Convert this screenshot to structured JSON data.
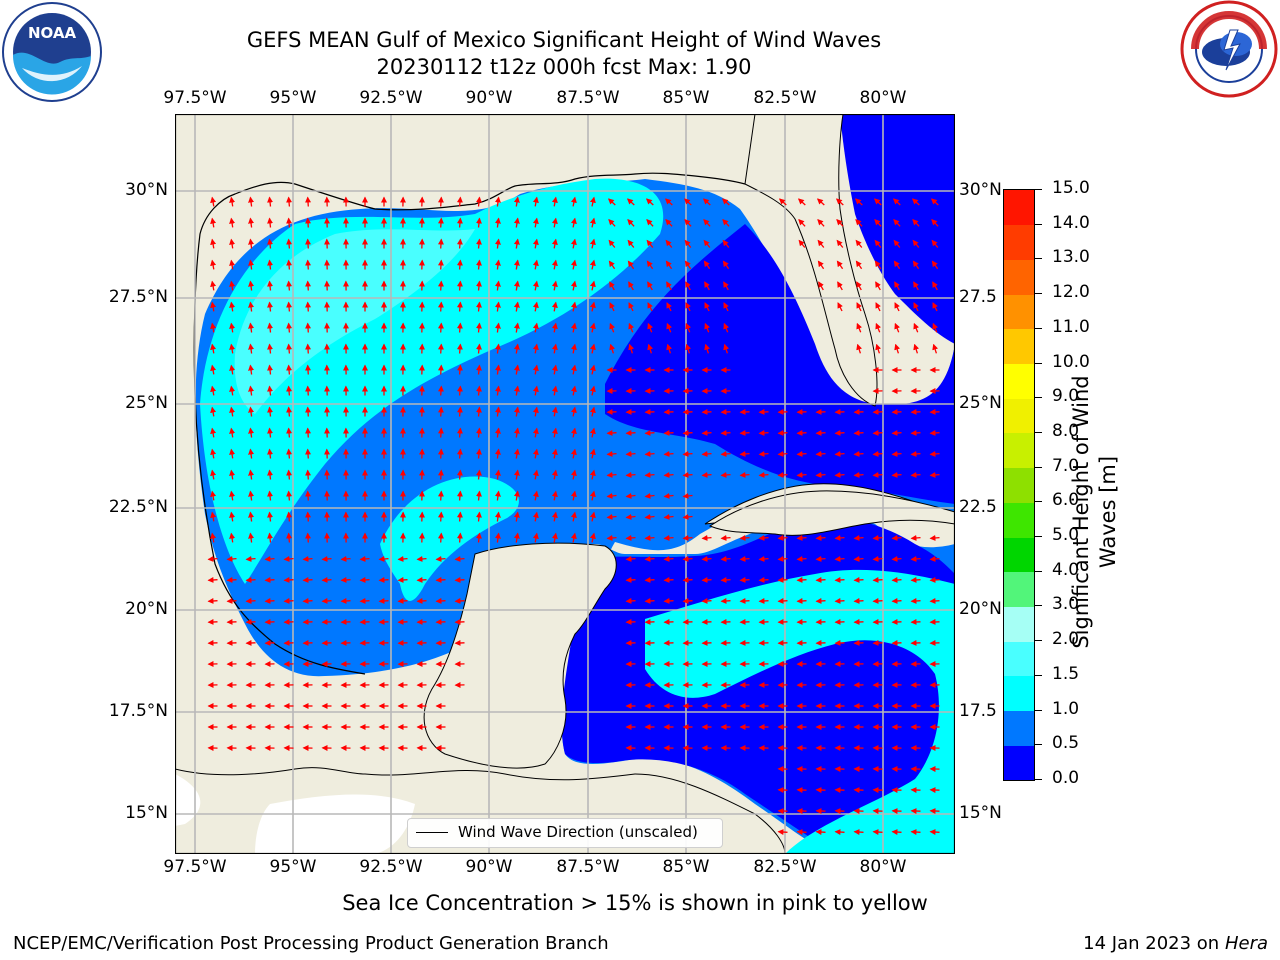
{
  "title": {
    "line1": "GEFS MEAN Gulf of Mexico Significant Height of Wind Waves",
    "line2": "20230112 t12z 000h fcst   Max: 1.90"
  },
  "map": {
    "lon_ticks": [
      "97.5°W",
      "95°W",
      "92.5°W",
      "90°W",
      "87.5°W",
      "85°W",
      "82.5°W",
      "80°W"
    ],
    "lat_ticks_left": [
      "30°N",
      "27.5°N",
      "25°N",
      "22.5°N",
      "20°N",
      "17.5°N",
      "15°N"
    ],
    "lat_ticks_right": [
      "30°N",
      "27.5",
      "25°N",
      "22.5",
      "20°N",
      "17.5",
      "15°N"
    ],
    "legend_label": "Wind Wave Direction (unscaled)",
    "arrow_color": "#ff0000",
    "land_color": "#efedde",
    "grid": true
  },
  "colorbar": {
    "label": "Significant Height of Wind Waves [m]",
    "ticks": [
      "0.0",
      "0.5",
      "1.0",
      "1.5",
      "2.0",
      "3.0",
      "4.0",
      "5.0",
      "6.0",
      "7.0",
      "8.0",
      "9.0",
      "10.0",
      "11.0",
      "12.0",
      "13.0",
      "14.0",
      "15.0"
    ],
    "colors": [
      "#0000ff",
      "#0078ff",
      "#00ffff",
      "#49ffff",
      "#a6fff5",
      "#52f57a",
      "#00d600",
      "#3ee600",
      "#8ee000",
      "#c8f000",
      "#f0f000",
      "#ffff00",
      "#ffc800",
      "#ff9100",
      "#ff6400",
      "#ff3c00",
      "#ff1500"
    ]
  },
  "chart_data": {
    "type": "heatmap",
    "title": "GEFS MEAN Gulf of Mexico Significant Height of Wind Waves",
    "subtitle": "20230112 t12z 000h fcst   Max: 1.90",
    "max_value": 1.9,
    "xlim": [
      "98W",
      "79W"
    ],
    "ylim": [
      "14N",
      "32N"
    ],
    "colorbar_range": [
      0,
      15
    ],
    "colorbar_label": "Significant Height of Wind Waves [m]",
    "legend": "Wind Wave Direction (unscaled)"
  },
  "notes": {
    "sea_ice": "Sea Ice Concentration > 15% is shown in pink to yellow"
  },
  "footer": {
    "left": "NCEP/EMC/Verification Post Processing Product Generation Branch",
    "right_date": "14 Jan 2023 on ",
    "right_host": "Hera"
  },
  "logos": {
    "noaa": "NOAA",
    "nws": "NATIONAL WEATHER SERVICE"
  }
}
